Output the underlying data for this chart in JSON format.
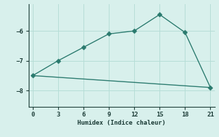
{
  "line1_x": [
    0,
    3,
    6,
    9,
    12,
    15,
    18,
    21
  ],
  "line1_y": [
    -7.5,
    -7.0,
    -6.55,
    -6.1,
    -6.0,
    -5.45,
    -6.05,
    -7.9
  ],
  "line2_x": [
    0,
    21
  ],
  "line2_y": [
    -7.5,
    -7.9
  ],
  "line_color": "#2a7a6e",
  "bg_color": "#d8f0ec",
  "grid_color": "#b5ddd6",
  "xlabel": "Humidex (Indice chaleur)",
  "xlim": [
    -0.5,
    21.5
  ],
  "ylim": [
    -8.55,
    -5.1
  ],
  "xticks": [
    0,
    3,
    6,
    9,
    12,
    15,
    18,
    21
  ],
  "yticks": [
    -8,
    -7,
    -6
  ],
  "marker": "D",
  "marker_size": 3.5,
  "linewidth": 1.0
}
